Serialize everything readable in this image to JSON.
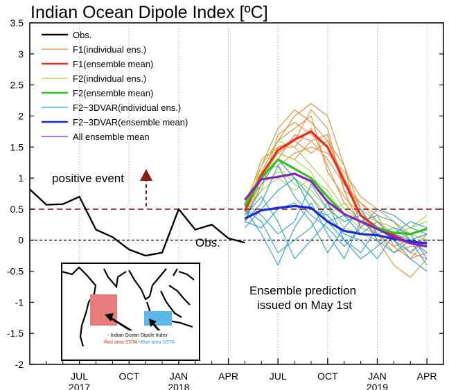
{
  "chart_data": {
    "type": "line",
    "title": "Indian Ocean Dipole Index [ºC]",
    "ylim": [
      -2,
      3.5
    ],
    "yticks": [
      "3.5",
      "3",
      "2.5",
      "2",
      "1.5",
      "1",
      "0.5",
      "0",
      "-0.5",
      "-1",
      "-1.5",
      "-2"
    ],
    "xaxis": {
      "start": "2017-04",
      "end": "2019-05",
      "ticks": [
        {
          "month": "2017-07",
          "label": "JUL",
          "year": "2017"
        },
        {
          "month": "2017-10",
          "label": "OCT"
        },
        {
          "month": "2018-01",
          "label": "JAN",
          "year": "2018"
        },
        {
          "month": "2018-04",
          "label": "APR"
        },
        {
          "month": "2018-07",
          "label": "JUL"
        },
        {
          "month": "2018-10",
          "label": "OCT"
        },
        {
          "month": "2019-01",
          "label": "JAN",
          "year": "2019"
        },
        {
          "month": "2019-04",
          "label": "APR"
        }
      ]
    },
    "legend": {
      "placement": "top-left",
      "entries": [
        {
          "label": "Obs.",
          "color": "#000000"
        },
        {
          "label": "F1(individual ens.)",
          "color": "#f0892f"
        },
        {
          "label": "F1(ensemble mean)",
          "color": "#ee2a1e"
        },
        {
          "label": "F2(individual ens.)",
          "color": "#a6d63d"
        },
        {
          "label": "F2(ensemble mean)",
          "color": "#2ec51f"
        },
        {
          "label": "F2−3DVAR(individual ens.)",
          "color": "#2a9fe0"
        },
        {
          "label": "F2−3DVAR(ensemble mean)",
          "color": "#1f28d8"
        },
        {
          "label": "All ensemble mean",
          "color": "#8a1fc2"
        }
      ]
    },
    "threshold": {
      "value": 0.5,
      "color": "#8b1a1a"
    },
    "zero_line": 0,
    "series": [
      {
        "name": "Obs.",
        "color": "#000000",
        "width": 2.4,
        "x": [
          "2017-04",
          "2017-05",
          "2017-06",
          "2017-07",
          "2017-08",
          "2017-09",
          "2017-10",
          "2017-11",
          "2017-12",
          "2018-01",
          "2018-02",
          "2018-03",
          "2018-04",
          "2018-05"
        ],
        "y": [
          0.82,
          0.57,
          0.58,
          0.7,
          0.17,
          0.05,
          -0.15,
          -0.25,
          -0.2,
          0.5,
          0.17,
          0.25,
          0.03,
          -0.04
        ]
      },
      {
        "name": "F1(ensemble mean)",
        "color": "#ee2a1e",
        "width": 3.2,
        "x": [
          "2018-05",
          "2018-06",
          "2018-07",
          "2018-08",
          "2018-09",
          "2018-10",
          "2018-11",
          "2018-12",
          "2019-01",
          "2019-02",
          "2019-03",
          "2019-04"
        ],
        "y": [
          0.47,
          1.05,
          1.45,
          1.62,
          1.75,
          1.5,
          0.95,
          0.4,
          0.2,
          0.08,
          -0.05,
          -0.1
        ]
      },
      {
        "name": "F2(ensemble mean)",
        "color": "#2ec51f",
        "width": 3.2,
        "x": [
          "2018-05",
          "2018-06",
          "2018-07",
          "2018-08",
          "2018-09",
          "2018-10",
          "2018-11",
          "2018-12",
          "2019-01",
          "2019-02",
          "2019-03",
          "2019-04"
        ],
        "y": [
          0.55,
          1.0,
          1.3,
          1.15,
          1.0,
          0.7,
          0.42,
          0.3,
          0.2,
          0.12,
          0.1,
          0.18
        ]
      },
      {
        "name": "F2−3DVAR(ensemble mean)",
        "color": "#1f28d8",
        "width": 3.2,
        "x": [
          "2018-05",
          "2018-06",
          "2018-07",
          "2018-08",
          "2018-09",
          "2018-10",
          "2018-11",
          "2018-12",
          "2019-01",
          "2019-02",
          "2019-03",
          "2019-04"
        ],
        "y": [
          0.35,
          0.48,
          0.52,
          0.55,
          0.52,
          0.3,
          0.15,
          0.1,
          0.08,
          0.02,
          -0.02,
          -0.05
        ]
      },
      {
        "name": "All ensemble mean",
        "color": "#8a1fc2",
        "width": 3.2,
        "x": [
          "2018-05",
          "2018-06",
          "2018-07",
          "2018-08",
          "2018-09",
          "2018-10",
          "2018-11",
          "2018-12",
          "2019-01",
          "2019-02",
          "2019-03",
          "2019-04"
        ],
        "y": [
          0.65,
          0.98,
          1.02,
          1.07,
          0.95,
          0.62,
          0.42,
          0.3,
          0.18,
          0.05,
          -0.05,
          -0.1
        ]
      }
    ],
    "ensembles": [
      {
        "name": "F1(individual ens.)",
        "color": "#f0892f",
        "x": [
          "2018-05",
          "2018-06",
          "2018-07",
          "2018-08",
          "2018-09",
          "2018-10",
          "2018-11",
          "2018-12",
          "2019-01",
          "2019-02",
          "2019-03",
          "2019-04"
        ],
        "members": [
          [
            0.5,
            1.1,
            1.6,
            2.0,
            2.2,
            2.0,
            1.2,
            0.5,
            0.3,
            0.1,
            0.0,
            -0.1
          ],
          [
            0.4,
            1.2,
            1.8,
            2.1,
            1.9,
            1.6,
            1.0,
            0.4,
            0.2,
            0.0,
            -0.2,
            -0.3
          ],
          [
            0.6,
            1.0,
            1.4,
            1.6,
            2.1,
            1.8,
            0.8,
            0.2,
            0.1,
            -0.1,
            -0.3,
            0.0
          ],
          [
            0.5,
            0.9,
            1.3,
            1.7,
            1.6,
            1.3,
            0.9,
            0.6,
            0.3,
            0.2,
            0.0,
            -0.2
          ],
          [
            0.3,
            1.0,
            1.5,
            1.5,
            1.8,
            1.2,
            0.6,
            0.3,
            0.1,
            -0.2,
            -0.1,
            -0.1
          ],
          [
            0.5,
            1.1,
            1.2,
            1.4,
            1.5,
            1.4,
            1.1,
            0.7,
            0.5,
            0.3,
            0.1,
            0.0
          ],
          [
            0.4,
            0.8,
            1.7,
            1.9,
            1.7,
            1.5,
            1.0,
            0.5,
            0.0,
            -0.4,
            -0.6,
            -0.3
          ],
          [
            0.6,
            1.2,
            1.6,
            1.8,
            2.0,
            1.1,
            0.7,
            0.4,
            0.2,
            0.1,
            -0.2,
            0.1
          ],
          [
            0.5,
            1.3,
            1.5,
            1.6,
            1.4,
            1.6,
            1.2,
            0.2,
            0.1,
            0.0,
            -0.3,
            -0.2
          ],
          [
            0.4,
            1.0,
            1.4,
            1.3,
            1.6,
            1.7,
            0.8,
            0.6,
            0.4,
            -0.1,
            0.0,
            0.1
          ]
        ]
      },
      {
        "name": "F2(individual ens.)",
        "color": "#a6d63d",
        "x": [
          "2018-05",
          "2018-06",
          "2018-07",
          "2018-08",
          "2018-09",
          "2018-10",
          "2018-11",
          "2018-12",
          "2019-01",
          "2019-02",
          "2019-03",
          "2019-04"
        ],
        "members": [
          [
            0.6,
            1.2,
            1.6,
            1.5,
            1.2,
            0.9,
            0.5,
            0.3,
            0.2,
            0.1,
            0.2,
            0.3
          ],
          [
            0.5,
            0.9,
            1.1,
            1.0,
            0.8,
            0.5,
            0.3,
            0.4,
            0.3,
            0.2,
            0.0,
            0.1
          ],
          [
            0.4,
            1.0,
            1.4,
            1.3,
            1.1,
            0.6,
            0.2,
            0.1,
            0.0,
            0.1,
            0.2,
            0.4
          ],
          [
            0.6,
            1.1,
            1.2,
            0.9,
            0.7,
            0.4,
            0.6,
            0.5,
            0.3,
            0.2,
            0.1,
            0.0
          ],
          [
            0.5,
            0.8,
            1.0,
            0.8,
            1.0,
            0.8,
            0.4,
            0.2,
            0.1,
            0.0,
            0.1,
            0.2
          ]
        ]
      },
      {
        "name": "F2−3DVAR(individual ens.)",
        "color": "#2a9fe0",
        "x": [
          "2018-05",
          "2018-06",
          "2018-07",
          "2018-08",
          "2018-09",
          "2018-10",
          "2018-11",
          "2018-12",
          "2019-01",
          "2019-02",
          "2019-03",
          "2019-04"
        ],
        "members": [
          [
            0.3,
            0.9,
            1.3,
            1.0,
            0.7,
            0.3,
            0.0,
            -0.2,
            0.2,
            0.0,
            -0.3,
            -0.5
          ],
          [
            0.5,
            0.1,
            -0.4,
            0.2,
            0.6,
            0.1,
            -0.3,
            0.3,
            0.4,
            0.3,
            0.0,
            -0.2
          ],
          [
            0.2,
            0.5,
            0.8,
            1.0,
            0.5,
            0.4,
            0.1,
            0.0,
            -0.3,
            0.1,
            0.3,
            0.2
          ],
          [
            0.6,
            0.4,
            0.1,
            0.3,
            0.9,
            0.5,
            0.3,
            0.4,
            0.0,
            -0.2,
            0.0,
            0.1
          ],
          [
            0.3,
            0.2,
            0.5,
            0.6,
            0.3,
            -0.2,
            0.2,
            0.5,
            0.1,
            0.2,
            0.1,
            -0.3
          ],
          [
            0.4,
            0.7,
            0.3,
            -0.3,
            0.0,
            0.3,
            0.4,
            0.1,
            0.3,
            0.0,
            -0.2,
            0.0
          ],
          [
            0.3,
            0.6,
            1.2,
            0.7,
            0.4,
            0.2,
            -0.1,
            0.2,
            0.5,
            0.4,
            0.2,
            0.1
          ],
          [
            0.5,
            0.3,
            -0.2,
            0.0,
            0.2,
            0.6,
            0.0,
            -0.3,
            -0.1,
            0.1,
            0.0,
            -0.4
          ]
        ]
      }
    ],
    "annotations": [
      {
        "text": "positive event"
      },
      {
        "text": "Obs."
      },
      {
        "text": "Ensemble prediction"
      },
      {
        "text": "issued on May 1st"
      }
    ],
    "inset_map": {
      "caption": "Indian Ocean Dipole Index",
      "red_label": "Red area SSTA",
      "separator": "−",
      "blue_label": "Blue area SSTA",
      "red_color": "#e87c7c",
      "blue_color": "#5cb8e8"
    }
  }
}
